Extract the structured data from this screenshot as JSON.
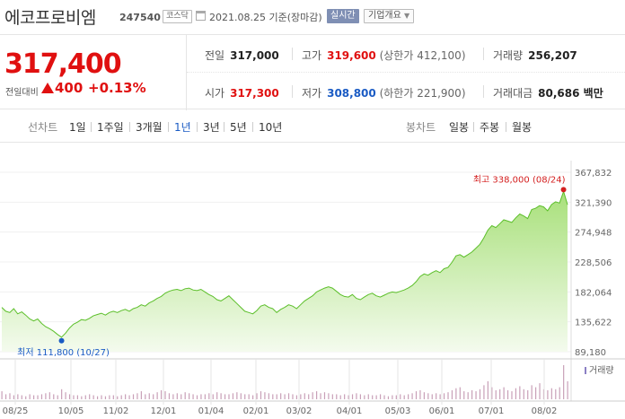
{
  "header": {
    "name": "에코프로비엠",
    "code": "247540",
    "market": "코스닥",
    "date": "2021.08.25 기준(장마감)",
    "realtime": "실시간",
    "company_info": "기업개요"
  },
  "summary": {
    "price": "317,400",
    "change_label": "전일대비",
    "change_value": "400",
    "change_pct": "+0.13%",
    "prev_label": "전일",
    "prev_value": "317,000",
    "high_label": "고가",
    "high_value": "319,600",
    "upper_limit": "(상한가 412,100)",
    "volume_label": "거래량",
    "volume_value": "256,207",
    "open_label": "시가",
    "open_value": "317,300",
    "low_label": "저가",
    "low_value": "308,800",
    "lower_limit": "(하한가 221,900)",
    "amount_label": "거래대금",
    "amount_value": "80,686 백만"
  },
  "toolbar": {
    "line_label": "선차트",
    "line_periods": [
      "1일",
      "1주일",
      "3개월",
      "1년",
      "3년",
      "5년",
      "10년"
    ],
    "selected": "1년",
    "candle_label": "봉차트",
    "candle_periods": [
      "일봉",
      "주봉",
      "월봉"
    ]
  },
  "chart_data": {
    "type": "area",
    "y_ticks": [
      "367,832",
      "321,390",
      "274,948",
      "228,506",
      "182,064",
      "135,622",
      "89,180"
    ],
    "ylim": [
      89180,
      367832
    ],
    "x_ticks": [
      "08/25",
      "10/05",
      "11/02",
      "12/01",
      "01/04",
      "02/01",
      "03/02",
      "04/01",
      "05/03",
      "06/01",
      "07/01",
      "08/02"
    ],
    "high_annotation": "최고 338,000 (08/24)",
    "low_annotation": "최저 111,800 (10/27)",
    "volume_label": "거래량",
    "values": [
      158000,
      152000,
      150000,
      156000,
      148000,
      151000,
      146000,
      140000,
      137000,
      140000,
      133000,
      128000,
      125000,
      121000,
      116000,
      111800,
      118000,
      126000,
      132000,
      135000,
      139000,
      138000,
      141000,
      145000,
      147000,
      149000,
      146000,
      150000,
      152000,
      150000,
      153000,
      155000,
      152000,
      156000,
      158000,
      162000,
      160000,
      165000,
      168000,
      172000,
      175000,
      180000,
      183000,
      185000,
      186000,
      184000,
      187000,
      188000,
      185000,
      184000,
      186000,
      182000,
      178000,
      175000,
      170000,
      168000,
      172000,
      176000,
      170000,
      164000,
      158000,
      152000,
      150000,
      148000,
      153000,
      160000,
      162000,
      158000,
      156000,
      150000,
      155000,
      158000,
      162000,
      160000,
      156000,
      162000,
      168000,
      172000,
      176000,
      182000,
      185000,
      188000,
      190000,
      188000,
      183000,
      178000,
      175000,
      174000,
      178000,
      172000,
      170000,
      174000,
      178000,
      180000,
      176000,
      174000,
      177000,
      180000,
      182000,
      181000,
      183000,
      185000,
      188000,
      192000,
      198000,
      206000,
      210000,
      208000,
      212000,
      215000,
      212000,
      218000,
      220000,
      228000,
      238000,
      240000,
      236000,
      240000,
      244000,
      250000,
      256000,
      266000,
      278000,
      285000,
      282000,
      288000,
      294000,
      292000,
      290000,
      297000,
      303000,
      300000,
      296000,
      310000,
      312000,
      316000,
      314000,
      308000,
      318000,
      322000,
      320000,
      338000,
      317400
    ],
    "volume": [
      8,
      5,
      6,
      4,
      5,
      4,
      3,
      5,
      4,
      4,
      5,
      6,
      7,
      5,
      4,
      10,
      7,
      5,
      4,
      4,
      3,
      4,
      5,
      4,
      3,
      4,
      3,
      4,
      4,
      3,
      4,
      5,
      4,
      5,
      6,
      8,
      5,
      6,
      5,
      7,
      9,
      8,
      6,
      5,
      6,
      5,
      7,
      6,
      5,
      4,
      5,
      5,
      6,
      5,
      7,
      6,
      5,
      5,
      6,
      7,
      6,
      5,
      5,
      4,
      6,
      8,
      7,
      6,
      5,
      5,
      6,
      5,
      6,
      5,
      4,
      5,
      6,
      5,
      7,
      8,
      6,
      7,
      6,
      5,
      5,
      4,
      5,
      4,
      5,
      6,
      5,
      4,
      5,
      4,
      4,
      5,
      4,
      3,
      4,
      4,
      5,
      4,
      5,
      6,
      8,
      9,
      7,
      6,
      5,
      6,
      5,
      6,
      7,
      9,
      11,
      12,
      8,
      7,
      9,
      8,
      10,
      14,
      18,
      12,
      9,
      10,
      12,
      9,
      8,
      11,
      13,
      10,
      9,
      14,
      12,
      16,
      10,
      9,
      11,
      10,
      12,
      34,
      18
    ]
  }
}
